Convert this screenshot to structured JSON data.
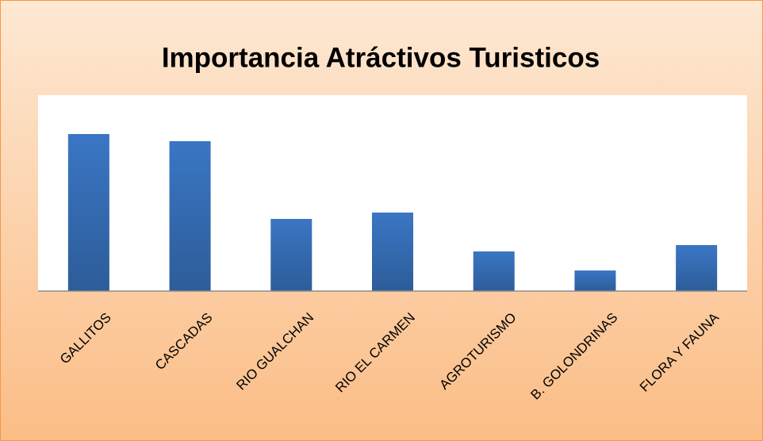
{
  "chart_data": {
    "type": "bar",
    "title": "Importancia Atráctivos Turisticos",
    "categories": [
      "GALLITOS",
      "CASCADAS",
      "RIO GUALCHAN",
      "RIO EL CARMEN",
      "AGROTURISMO",
      "B. GOLONDRINAS",
      "FLORA Y FAUNA"
    ],
    "values": [
      198,
      189,
      91,
      99,
      50,
      26,
      58
    ],
    "color": "#3a76c4",
    "ylim": [
      0,
      247
    ]
  }
}
